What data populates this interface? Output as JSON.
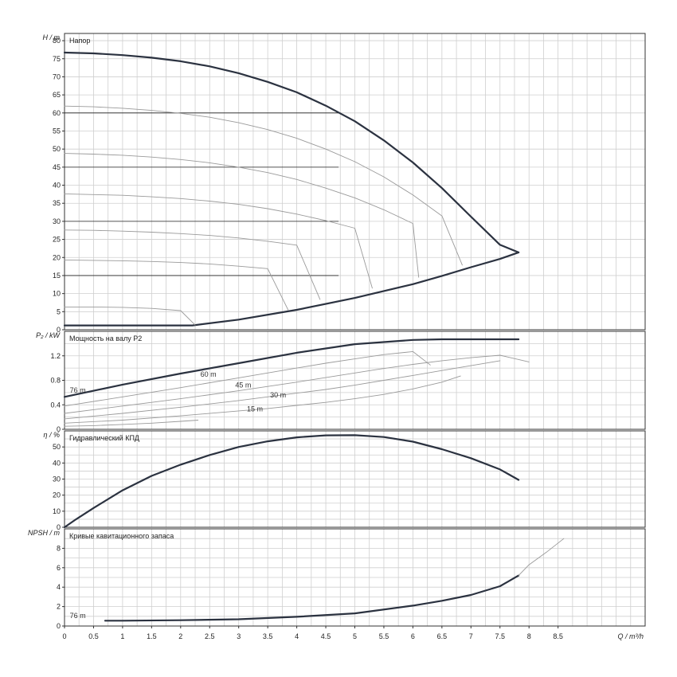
{
  "chart_data": [
    {
      "type": "line",
      "title": "Напор",
      "ylabel": "H / m",
      "xlim": [
        0,
        10
      ],
      "ylim": [
        0,
        82
      ],
      "yticks": [
        "0",
        "5",
        "10",
        "15",
        "20",
        "25",
        "30",
        "35",
        "40",
        "45",
        "50",
        "55",
        "60",
        "65",
        "70",
        "75",
        "80"
      ],
      "grid": true,
      "reference_lines_y": [
        15,
        30,
        45,
        60
      ],
      "series": [
        {
          "style": "bold",
          "x": [
            0,
            0.5,
            1,
            1.5,
            2,
            2.5,
            3,
            3.5,
            4,
            4.5,
            5,
            5.5,
            6,
            6.5,
            7,
            7.5,
            7.82
          ],
          "y": [
            76.7,
            76.5,
            76.0,
            75.3,
            74.3,
            72.9,
            71.0,
            68.6,
            65.7,
            62.0,
            57.7,
            52.4,
            46.3,
            39.2,
            31.3,
            23.5,
            21.4
          ]
        },
        {
          "style": "bold",
          "x": [
            0,
            1,
            2.2,
            3,
            4,
            5,
            6,
            6.5,
            7,
            7.5,
            7.82
          ],
          "y": [
            1.2,
            1.2,
            1.2,
            2.8,
            5.5,
            8.8,
            12.6,
            14.9,
            17.3,
            19.6,
            21.4
          ]
        },
        {
          "style": "thin",
          "x": [
            0,
            0.5,
            1,
            1.5,
            2,
            2.5,
            3,
            3.5,
            4,
            4.5,
            5,
            5.5,
            6,
            6.5,
            6.85
          ],
          "y": [
            61.9,
            61.7,
            61.3,
            60.7,
            59.9,
            58.8,
            57.3,
            55.4,
            53.0,
            50.0,
            46.5,
            42.3,
            37.3,
            31.5,
            17.9
          ]
        },
        {
          "style": "thin",
          "x": [
            0,
            0.5,
            1,
            1.5,
            2,
            2.5,
            3,
            3.5,
            4,
            4.5,
            5,
            5.5,
            6,
            6.1
          ],
          "y": [
            48.8,
            48.6,
            48.3,
            47.8,
            47.1,
            46.2,
            45.0,
            43.5,
            41.6,
            39.2,
            36.5,
            33.2,
            29.4,
            14.5
          ]
        },
        {
          "style": "thin",
          "x": [
            0,
            0.5,
            1,
            1.5,
            2,
            2.5,
            3,
            3.5,
            4,
            4.5,
            5,
            5.3
          ],
          "y": [
            37.6,
            37.4,
            37.2,
            36.8,
            36.3,
            35.6,
            34.7,
            33.5,
            32.0,
            30.2,
            28.1,
            11.5
          ]
        },
        {
          "style": "thin",
          "x": [
            0,
            0.5,
            1,
            1.5,
            2,
            2.5,
            3,
            3.5,
            4,
            4.4
          ],
          "y": [
            27.6,
            27.5,
            27.3,
            27.0,
            26.6,
            26.1,
            25.4,
            24.5,
            23.4,
            8.4
          ]
        },
        {
          "style": "thin",
          "x": [
            0,
            0.5,
            1,
            1.5,
            2,
            2.5,
            3,
            3.5,
            3.85
          ],
          "y": [
            19.3,
            19.2,
            19.1,
            18.9,
            18.6,
            18.2,
            17.6,
            16.9,
            5.5
          ]
        },
        {
          "style": "thin",
          "x": [
            0,
            0.5,
            1,
            1.5,
            2,
            2.25
          ],
          "y": [
            6.3,
            6.3,
            6.2,
            5.9,
            5.3,
            1.3
          ]
        }
      ]
    },
    {
      "type": "line",
      "title": "Мощность на валу P2",
      "ylabel": "P₂ / kW",
      "xlim": [
        0,
        10
      ],
      "ylim": [
        0,
        1.6
      ],
      "yticks": [
        "0",
        "0.4",
        "0.8",
        "1.2"
      ],
      "grid": true,
      "annotations": [
        "76 m",
        "60 m",
        "45 m",
        "30 m",
        "15 m"
      ],
      "series": [
        {
          "style": "bold",
          "x": [
            0,
            1,
            2,
            3,
            4,
            5,
            6,
            6.5,
            7,
            7.5,
            7.82
          ],
          "y": [
            0.53,
            0.73,
            0.91,
            1.08,
            1.25,
            1.39,
            1.46,
            1.47,
            1.47,
            1.47,
            1.47
          ]
        },
        {
          "style": "thin",
          "x": [
            0,
            1,
            2,
            3,
            4,
            4.5,
            5,
            5.5,
            6,
            6.3
          ],
          "y": [
            0.38,
            0.53,
            0.68,
            0.84,
            1.0,
            1.08,
            1.15,
            1.22,
            1.27,
            1.05
          ]
        },
        {
          "style": "thin",
          "x": [
            0,
            1,
            2,
            3,
            4,
            5,
            5.4,
            6,
            6.5,
            7,
            7.5,
            8
          ],
          "y": [
            0.26,
            0.38,
            0.5,
            0.63,
            0.77,
            0.92,
            0.98,
            1.06,
            1.12,
            1.17,
            1.21,
            1.1
          ]
        },
        {
          "style": "thin",
          "x": [
            0,
            1,
            2,
            3,
            4,
            4.5,
            5,
            5.5,
            6,
            6.5,
            7,
            7.5
          ],
          "y": [
            0.17,
            0.26,
            0.36,
            0.47,
            0.59,
            0.65,
            0.72,
            0.8,
            0.88,
            0.96,
            1.04,
            1.12
          ]
        },
        {
          "style": "thin",
          "x": [
            0,
            1,
            2,
            3,
            3.5,
            4,
            4.5,
            5,
            5.5,
            6,
            6.5,
            6.82
          ],
          "y": [
            0.1,
            0.15,
            0.22,
            0.3,
            0.34,
            0.39,
            0.44,
            0.5,
            0.57,
            0.66,
            0.77,
            0.87
          ]
        },
        {
          "style": "thin",
          "x": [
            0,
            0.5,
            1,
            1.5,
            2,
            2.3
          ],
          "y": [
            0.05,
            0.06,
            0.08,
            0.1,
            0.13,
            0.15
          ]
        }
      ]
    },
    {
      "type": "line",
      "title": "Гидравлический КПД",
      "ylabel": "η / %",
      "xlim": [
        0,
        10
      ],
      "ylim": [
        0,
        60
      ],
      "yticks": [
        "0",
        "10",
        "20",
        "30",
        "40",
        "50"
      ],
      "grid": true,
      "series": [
        {
          "style": "bold",
          "x": [
            0,
            0.2,
            0.5,
            1,
            1.5,
            2,
            2.5,
            3,
            3.5,
            4,
            4.5,
            5,
            5.5,
            6,
            6.5,
            7,
            7.5,
            7.82
          ],
          "y": [
            0,
            5,
            12,
            23,
            32,
            39,
            45,
            50,
            53.5,
            56,
            57.2,
            57.3,
            56.2,
            53.3,
            48.6,
            43.0,
            36.0,
            29.5
          ]
        }
      ]
    },
    {
      "type": "line",
      "title": "Кривые кавитационного запаса",
      "ylabel": "NPSH / m",
      "xlabel": "Q / m³/h",
      "xlim": [
        0,
        10
      ],
      "ylim": [
        0,
        10
      ],
      "xticks": [
        "0",
        "0.5",
        "1",
        "1.5",
        "2",
        "2.5",
        "3",
        "3.5",
        "4",
        "4.5",
        "5",
        "5.5",
        "6",
        "6.5",
        "7",
        "7.5",
        "8",
        "8.5"
      ],
      "yticks": [
        "0",
        "2",
        "4",
        "6",
        "8"
      ],
      "grid": true,
      "annotations": [
        "76 m"
      ],
      "series": [
        {
          "style": "bold",
          "x": [
            0.7,
            1,
            2,
            3,
            4,
            5,
            6,
            6.5,
            7,
            7.5,
            7.82
          ],
          "y": [
            0.55,
            0.55,
            0.6,
            0.7,
            0.95,
            1.3,
            2.1,
            2.6,
            3.2,
            4.1,
            5.2
          ]
        },
        {
          "style": "thin",
          "x": [
            7.82,
            8,
            8.3,
            8.6
          ],
          "y": [
            5.2,
            6.3,
            7.6,
            9.0
          ]
        }
      ]
    }
  ]
}
